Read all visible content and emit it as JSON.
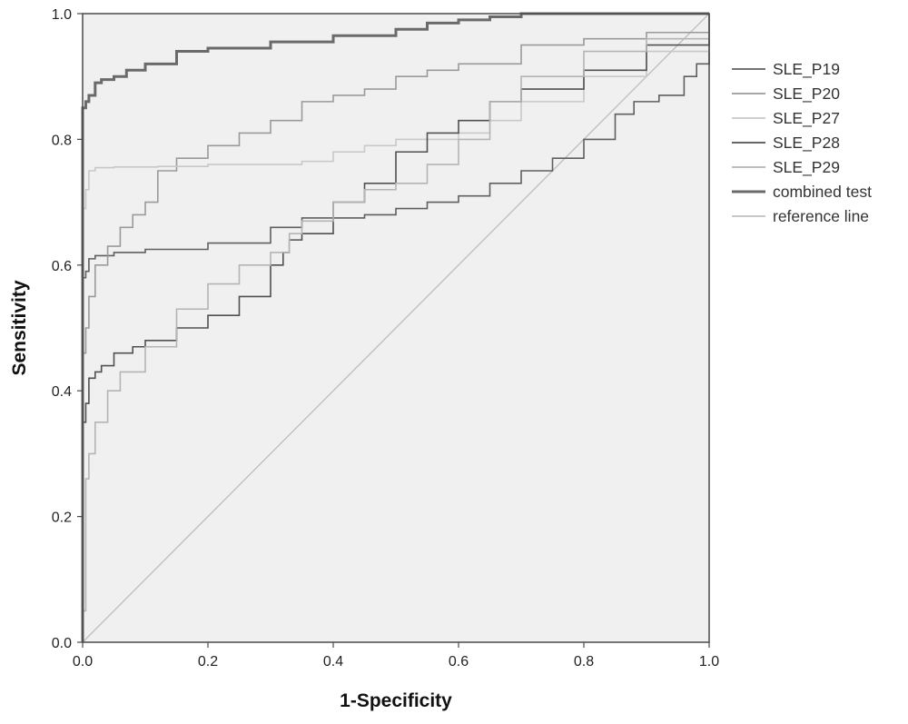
{
  "chart_data": {
    "type": "line",
    "title": "",
    "xlabel": "1-Specificity",
    "ylabel": "Sensitivity",
    "xlim": [
      0,
      1
    ],
    "ylim": [
      0,
      1
    ],
    "xticks": [
      "0.0",
      "0.2",
      "0.4",
      "0.6",
      "0.8",
      "1.0"
    ],
    "yticks": [
      "0.0",
      "0.2",
      "0.4",
      "0.6",
      "0.8",
      "1.0"
    ],
    "grid": false,
    "legend_position": "right",
    "background": "#f0f0f0",
    "series": [
      {
        "name": "SLE_P19",
        "color": "#5f5f5f",
        "width": 1.6,
        "x": [
          0,
          0,
          0.005,
          0.01,
          0.02,
          0.05,
          0.1,
          0.2,
          0.3,
          0.35,
          0.45,
          0.5,
          0.55,
          0.6,
          0.65,
          0.7,
          0.75,
          0.8,
          0.85,
          0.88,
          0.92,
          0.96,
          0.98,
          1
        ],
        "y": [
          0,
          0.58,
          0.59,
          0.61,
          0.615,
          0.62,
          0.625,
          0.635,
          0.66,
          0.675,
          0.68,
          0.69,
          0.7,
          0.71,
          0.73,
          0.75,
          0.77,
          0.8,
          0.84,
          0.86,
          0.87,
          0.9,
          0.92,
          1
        ]
      },
      {
        "name": "SLE_P20",
        "color": "#9a9a9a",
        "width": 1.6,
        "x": [
          0,
          0,
          0.005,
          0.01,
          0.02,
          0.04,
          0.06,
          0.08,
          0.1,
          0.12,
          0.15,
          0.2,
          0.25,
          0.3,
          0.35,
          0.4,
          0.45,
          0.5,
          0.55,
          0.6,
          0.7,
          0.8,
          0.9,
          1
        ],
        "y": [
          0,
          0.46,
          0.5,
          0.55,
          0.6,
          0.63,
          0.66,
          0.68,
          0.7,
          0.75,
          0.77,
          0.79,
          0.81,
          0.83,
          0.86,
          0.87,
          0.88,
          0.9,
          0.91,
          0.92,
          0.95,
          0.96,
          0.97,
          1
        ]
      },
      {
        "name": "SLE_P27",
        "color": "#c8c8c8",
        "width": 1.6,
        "x": [
          0,
          0,
          0.005,
          0.01,
          0.02,
          0.05,
          0.12,
          0.2,
          0.3,
          0.35,
          0.4,
          0.45,
          0.5,
          0.55,
          0.6,
          0.65,
          0.7,
          0.8,
          0.9,
          1
        ],
        "y": [
          0,
          0.69,
          0.72,
          0.75,
          0.755,
          0.756,
          0.757,
          0.76,
          0.76,
          0.765,
          0.78,
          0.79,
          0.8,
          0.8,
          0.81,
          0.83,
          0.86,
          0.9,
          0.94,
          1
        ]
      },
      {
        "name": "SLE_P28",
        "color": "#505050",
        "width": 1.6,
        "x": [
          0,
          0,
          0.005,
          0.01,
          0.02,
          0.03,
          0.05,
          0.08,
          0.1,
          0.15,
          0.2,
          0.25,
          0.3,
          0.32,
          0.33,
          0.35,
          0.4,
          0.45,
          0.5,
          0.55,
          0.6,
          0.65,
          0.7,
          0.8,
          0.9,
          1
        ],
        "y": [
          0,
          0.35,
          0.38,
          0.42,
          0.43,
          0.44,
          0.46,
          0.47,
          0.48,
          0.5,
          0.52,
          0.55,
          0.6,
          0.62,
          0.64,
          0.65,
          0.7,
          0.73,
          0.78,
          0.81,
          0.83,
          0.86,
          0.88,
          0.91,
          0.95,
          1
        ]
      },
      {
        "name": "SLE_P29",
        "color": "#b4b4b4",
        "width": 1.6,
        "x": [
          0,
          0,
          0.005,
          0.01,
          0.02,
          0.04,
          0.06,
          0.1,
          0.15,
          0.2,
          0.25,
          0.3,
          0.33,
          0.35,
          0.4,
          0.45,
          0.5,
          0.55,
          0.6,
          0.65,
          0.7,
          0.8,
          0.9,
          1
        ],
        "y": [
          0,
          0.05,
          0.26,
          0.3,
          0.35,
          0.4,
          0.43,
          0.47,
          0.53,
          0.57,
          0.6,
          0.62,
          0.65,
          0.67,
          0.7,
          0.72,
          0.73,
          0.76,
          0.8,
          0.86,
          0.9,
          0.94,
          0.96,
          1
        ]
      },
      {
        "name": "combined test",
        "color": "#6a6a6a",
        "width": 3,
        "x": [
          0,
          0,
          0.005,
          0.01,
          0.02,
          0.03,
          0.05,
          0.07,
          0.1,
          0.15,
          0.2,
          0.3,
          0.4,
          0.5,
          0.55,
          0.6,
          0.65,
          0.7,
          0.8,
          0.9,
          1
        ],
        "y": [
          0,
          0.85,
          0.86,
          0.87,
          0.89,
          0.895,
          0.9,
          0.91,
          0.92,
          0.94,
          0.945,
          0.955,
          0.965,
          0.975,
          0.985,
          0.99,
          0.995,
          1,
          1,
          1,
          1
        ]
      },
      {
        "name": "reference line",
        "color": "#c0c0c0",
        "width": 1.4,
        "x": [
          0,
          1
        ],
        "y": [
          0,
          1
        ]
      }
    ]
  }
}
